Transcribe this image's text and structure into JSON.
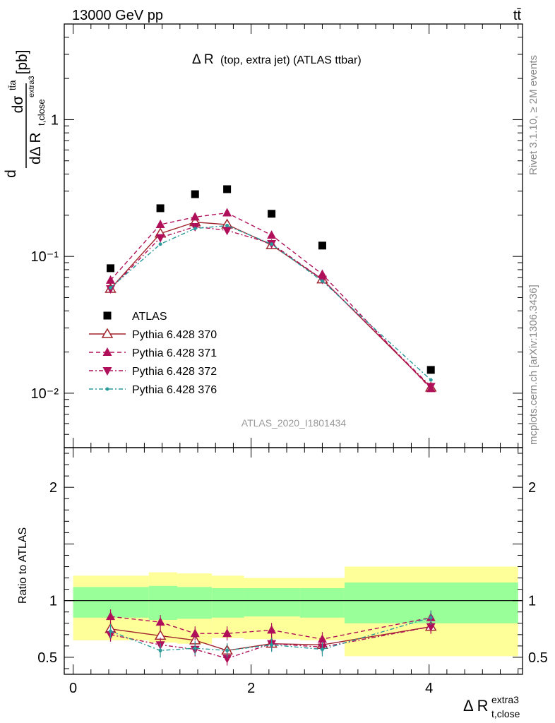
{
  "header": {
    "energy_label": "13000 GeV pp",
    "process_label": "tt̄"
  },
  "side_labels": {
    "rivet": "Rivet 3.1.10, ≥ 2M events",
    "mcplots": "mcplots.cern.ch [arXiv:1306.3436]"
  },
  "colors": {
    "atlas": "#000000",
    "p370": "#a0242c",
    "p371": "#b0105a",
    "p372": "#b0105a",
    "p376": "#2a9a9a",
    "band_inner": "#99ff99",
    "band_outer": "#ffff99"
  },
  "chart_data": [
    {
      "type": "scatter",
      "title_main": "Δ R",
      "title_sub": "(top, extra jet) (ATLAS ttbar)",
      "ylabel_main": "dσ",
      "ylabel_sup": "tt̄a",
      "ylabel_den": "dΔ R",
      "ylabel_den_sub": "t,close",
      "ylabel_den_sup": "extra3",
      "ylabel_unit": "[pb]",
      "yscale": "log",
      "ylim": [
        0.004,
        5
      ],
      "xlim": [
        -0.1,
        5.05
      ],
      "ytick_labels": [
        "10⁻²",
        "10⁻¹",
        "1"
      ],
      "ytick_values": [
        0.01,
        0.1,
        1
      ],
      "watermark": "ATLAS_2020_I1801434",
      "legend_position": "center-left",
      "x": [
        0.42,
        0.98,
        1.37,
        1.73,
        2.23,
        2.8,
        4.02
      ],
      "series": [
        {
          "name": "ATLAS",
          "marker": "square",
          "values": [
            0.082,
            0.225,
            0.285,
            0.31,
            0.205,
            0.12,
            0.0148
          ]
        },
        {
          "name": "Pythia 6.428 370",
          "marker": "open-triangle-up",
          "line": "solid",
          "values": [
            0.058,
            0.147,
            0.178,
            0.171,
            0.121,
            0.068,
            0.011
          ]
        },
        {
          "name": "Pythia 6.428 371",
          "marker": "triangle-up",
          "line": "dashed",
          "values": [
            0.067,
            0.171,
            0.194,
            0.208,
            0.143,
            0.074,
            0.0108
          ]
        },
        {
          "name": "Pythia 6.428 372",
          "marker": "triangle-down",
          "line": "dashdot",
          "values": [
            0.058,
            0.137,
            0.165,
            0.155,
            0.124,
            0.068,
            0.0112
          ]
        },
        {
          "name": "Pythia 6.428 376",
          "marker": "dot",
          "line": "dashdot",
          "values": [
            0.059,
            0.123,
            0.16,
            0.168,
            0.123,
            0.066,
            0.0125
          ]
        }
      ]
    },
    {
      "type": "line",
      "ylabel": "Ratio to ATLAS",
      "xlabel_main": "Δ R",
      "xlabel_sub": "t,close",
      "xlabel_sup": "extra3",
      "ylim": [
        0.35,
        2.35
      ],
      "xlim": [
        -0.1,
        5.05
      ],
      "xtick_values": [
        0,
        2,
        4
      ],
      "xtick_labels": [
        "0",
        "2",
        "4"
      ],
      "ytick_values": [
        0.5,
        1,
        2
      ],
      "ytick_labels": [
        "0.5",
        "1",
        "2"
      ],
      "bands": [
        {
          "x_range": [
            0.0,
            0.85
          ],
          "inner": [
            0.85,
            1.12
          ],
          "outer": [
            0.65,
            1.22
          ]
        },
        {
          "x_range": [
            0.85,
            1.17
          ],
          "inner": [
            0.83,
            1.13
          ],
          "outer": [
            0.63,
            1.25
          ]
        },
        {
          "x_range": [
            1.17,
            1.56
          ],
          "inner": [
            0.84,
            1.12
          ],
          "outer": [
            0.62,
            1.24
          ]
        },
        {
          "x_range": [
            1.56,
            1.92
          ],
          "inner": [
            0.85,
            1.11
          ],
          "outer": [
            0.67,
            1.22
          ]
        },
        {
          "x_range": [
            1.92,
            2.55
          ],
          "inner": [
            0.86,
            1.11
          ],
          "outer": [
            0.66,
            1.2
          ]
        },
        {
          "x_range": [
            2.55,
            3.05
          ],
          "inner": [
            0.85,
            1.11
          ],
          "outer": [
            0.65,
            1.2
          ]
        },
        {
          "x_range": [
            3.05,
            5.0
          ],
          "inner": [
            0.8,
            1.16
          ],
          "outer": [
            0.51,
            1.3
          ]
        }
      ],
      "x": [
        0.42,
        0.98,
        1.37,
        1.73,
        2.23,
        2.8,
        4.02
      ],
      "series": [
        {
          "name": "Pythia 6.428 370",
          "values": [
            0.75,
            0.69,
            0.65,
            0.56,
            0.62,
            0.61,
            0.77
          ]
        },
        {
          "name": "Pythia 6.428 371",
          "values": [
            0.86,
            0.81,
            0.71,
            0.71,
            0.74,
            0.66,
            0.85
          ]
        },
        {
          "name": "Pythia 6.428 372",
          "values": [
            0.7,
            0.61,
            0.57,
            0.49,
            0.62,
            0.59,
            0.77
          ]
        },
        {
          "name": "Pythia 6.428 376",
          "values": [
            0.73,
            0.56,
            0.58,
            0.56,
            0.61,
            0.57,
            0.85
          ]
        }
      ]
    }
  ]
}
